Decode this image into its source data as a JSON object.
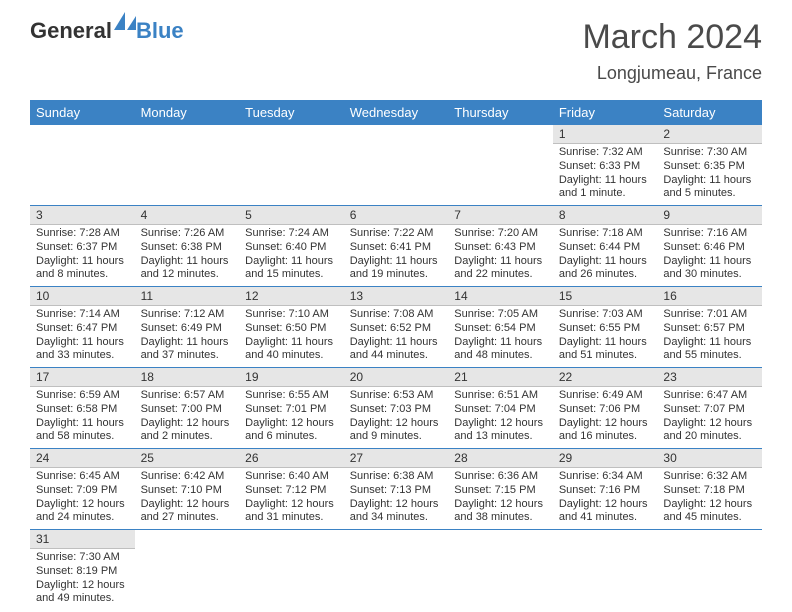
{
  "logo": {
    "word1": "General",
    "word2": "Blue"
  },
  "title": "March 2024",
  "location": "Longjumeau, France",
  "colors": {
    "header_bg": "#3b82c4",
    "header_text": "#ffffff",
    "daynum_bg": "#e6e6e6",
    "daynum_border": "#bfbfbf",
    "week_divider": "#3b82c4",
    "body_text": "#333333",
    "logo_dark": "#333333",
    "logo_blue": "#3b82c4"
  },
  "day_names": [
    "Sunday",
    "Monday",
    "Tuesday",
    "Wednesday",
    "Thursday",
    "Friday",
    "Saturday"
  ],
  "weeks": [
    [
      null,
      null,
      null,
      null,
      null,
      {
        "n": "1",
        "sunrise": "Sunrise: 7:32 AM",
        "sunset": "Sunset: 6:33 PM",
        "daylight1": "Daylight: 11 hours",
        "daylight2": "and 1 minute."
      },
      {
        "n": "2",
        "sunrise": "Sunrise: 7:30 AM",
        "sunset": "Sunset: 6:35 PM",
        "daylight1": "Daylight: 11 hours",
        "daylight2": "and 5 minutes."
      }
    ],
    [
      {
        "n": "3",
        "sunrise": "Sunrise: 7:28 AM",
        "sunset": "Sunset: 6:37 PM",
        "daylight1": "Daylight: 11 hours",
        "daylight2": "and 8 minutes."
      },
      {
        "n": "4",
        "sunrise": "Sunrise: 7:26 AM",
        "sunset": "Sunset: 6:38 PM",
        "daylight1": "Daylight: 11 hours",
        "daylight2": "and 12 minutes."
      },
      {
        "n": "5",
        "sunrise": "Sunrise: 7:24 AM",
        "sunset": "Sunset: 6:40 PM",
        "daylight1": "Daylight: 11 hours",
        "daylight2": "and 15 minutes."
      },
      {
        "n": "6",
        "sunrise": "Sunrise: 7:22 AM",
        "sunset": "Sunset: 6:41 PM",
        "daylight1": "Daylight: 11 hours",
        "daylight2": "and 19 minutes."
      },
      {
        "n": "7",
        "sunrise": "Sunrise: 7:20 AM",
        "sunset": "Sunset: 6:43 PM",
        "daylight1": "Daylight: 11 hours",
        "daylight2": "and 22 minutes."
      },
      {
        "n": "8",
        "sunrise": "Sunrise: 7:18 AM",
        "sunset": "Sunset: 6:44 PM",
        "daylight1": "Daylight: 11 hours",
        "daylight2": "and 26 minutes."
      },
      {
        "n": "9",
        "sunrise": "Sunrise: 7:16 AM",
        "sunset": "Sunset: 6:46 PM",
        "daylight1": "Daylight: 11 hours",
        "daylight2": "and 30 minutes."
      }
    ],
    [
      {
        "n": "10",
        "sunrise": "Sunrise: 7:14 AM",
        "sunset": "Sunset: 6:47 PM",
        "daylight1": "Daylight: 11 hours",
        "daylight2": "and 33 minutes."
      },
      {
        "n": "11",
        "sunrise": "Sunrise: 7:12 AM",
        "sunset": "Sunset: 6:49 PM",
        "daylight1": "Daylight: 11 hours",
        "daylight2": "and 37 minutes."
      },
      {
        "n": "12",
        "sunrise": "Sunrise: 7:10 AM",
        "sunset": "Sunset: 6:50 PM",
        "daylight1": "Daylight: 11 hours",
        "daylight2": "and 40 minutes."
      },
      {
        "n": "13",
        "sunrise": "Sunrise: 7:08 AM",
        "sunset": "Sunset: 6:52 PM",
        "daylight1": "Daylight: 11 hours",
        "daylight2": "and 44 minutes."
      },
      {
        "n": "14",
        "sunrise": "Sunrise: 7:05 AM",
        "sunset": "Sunset: 6:54 PM",
        "daylight1": "Daylight: 11 hours",
        "daylight2": "and 48 minutes."
      },
      {
        "n": "15",
        "sunrise": "Sunrise: 7:03 AM",
        "sunset": "Sunset: 6:55 PM",
        "daylight1": "Daylight: 11 hours",
        "daylight2": "and 51 minutes."
      },
      {
        "n": "16",
        "sunrise": "Sunrise: 7:01 AM",
        "sunset": "Sunset: 6:57 PM",
        "daylight1": "Daylight: 11 hours",
        "daylight2": "and 55 minutes."
      }
    ],
    [
      {
        "n": "17",
        "sunrise": "Sunrise: 6:59 AM",
        "sunset": "Sunset: 6:58 PM",
        "daylight1": "Daylight: 11 hours",
        "daylight2": "and 58 minutes."
      },
      {
        "n": "18",
        "sunrise": "Sunrise: 6:57 AM",
        "sunset": "Sunset: 7:00 PM",
        "daylight1": "Daylight: 12 hours",
        "daylight2": "and 2 minutes."
      },
      {
        "n": "19",
        "sunrise": "Sunrise: 6:55 AM",
        "sunset": "Sunset: 7:01 PM",
        "daylight1": "Daylight: 12 hours",
        "daylight2": "and 6 minutes."
      },
      {
        "n": "20",
        "sunrise": "Sunrise: 6:53 AM",
        "sunset": "Sunset: 7:03 PM",
        "daylight1": "Daylight: 12 hours",
        "daylight2": "and 9 minutes."
      },
      {
        "n": "21",
        "sunrise": "Sunrise: 6:51 AM",
        "sunset": "Sunset: 7:04 PM",
        "daylight1": "Daylight: 12 hours",
        "daylight2": "and 13 minutes."
      },
      {
        "n": "22",
        "sunrise": "Sunrise: 6:49 AM",
        "sunset": "Sunset: 7:06 PM",
        "daylight1": "Daylight: 12 hours",
        "daylight2": "and 16 minutes."
      },
      {
        "n": "23",
        "sunrise": "Sunrise: 6:47 AM",
        "sunset": "Sunset: 7:07 PM",
        "daylight1": "Daylight: 12 hours",
        "daylight2": "and 20 minutes."
      }
    ],
    [
      {
        "n": "24",
        "sunrise": "Sunrise: 6:45 AM",
        "sunset": "Sunset: 7:09 PM",
        "daylight1": "Daylight: 12 hours",
        "daylight2": "and 24 minutes."
      },
      {
        "n": "25",
        "sunrise": "Sunrise: 6:42 AM",
        "sunset": "Sunset: 7:10 PM",
        "daylight1": "Daylight: 12 hours",
        "daylight2": "and 27 minutes."
      },
      {
        "n": "26",
        "sunrise": "Sunrise: 6:40 AM",
        "sunset": "Sunset: 7:12 PM",
        "daylight1": "Daylight: 12 hours",
        "daylight2": "and 31 minutes."
      },
      {
        "n": "27",
        "sunrise": "Sunrise: 6:38 AM",
        "sunset": "Sunset: 7:13 PM",
        "daylight1": "Daylight: 12 hours",
        "daylight2": "and 34 minutes."
      },
      {
        "n": "28",
        "sunrise": "Sunrise: 6:36 AM",
        "sunset": "Sunset: 7:15 PM",
        "daylight1": "Daylight: 12 hours",
        "daylight2": "and 38 minutes."
      },
      {
        "n": "29",
        "sunrise": "Sunrise: 6:34 AM",
        "sunset": "Sunset: 7:16 PM",
        "daylight1": "Daylight: 12 hours",
        "daylight2": "and 41 minutes."
      },
      {
        "n": "30",
        "sunrise": "Sunrise: 6:32 AM",
        "sunset": "Sunset: 7:18 PM",
        "daylight1": "Daylight: 12 hours",
        "daylight2": "and 45 minutes."
      }
    ],
    [
      {
        "n": "31",
        "sunrise": "Sunrise: 7:30 AM",
        "sunset": "Sunset: 8:19 PM",
        "daylight1": "Daylight: 12 hours",
        "daylight2": "and 49 minutes."
      },
      null,
      null,
      null,
      null,
      null,
      null
    ]
  ]
}
